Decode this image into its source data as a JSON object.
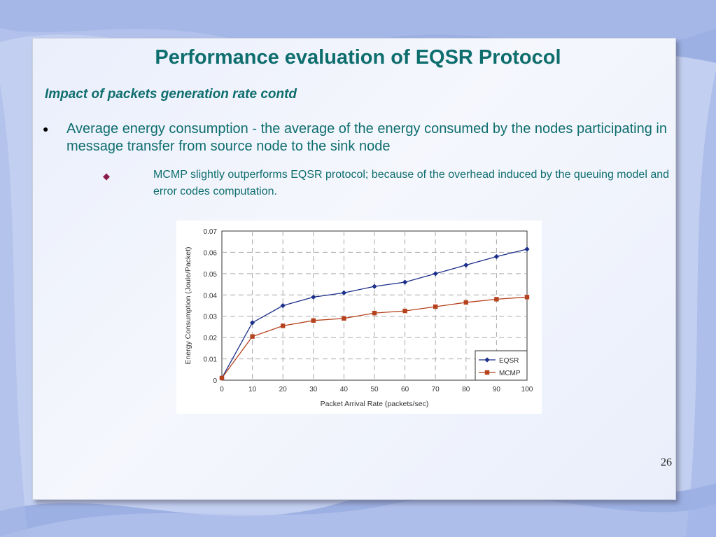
{
  "slide": {
    "title": "Performance evaluation of EQSR Protocol",
    "subtitle": "Impact of packets generation rate contd",
    "bullet1": "Average energy consumption - the average of the energy consumed by the nodes participating in message transfer from source node to the sink node",
    "bullet2": "MCMP slightly outperforms EQSR protocol; because of the overhead induced by the queuing model and error codes computation.",
    "page_number": "26"
  },
  "colors": {
    "title": "#0e6e6e",
    "eqsr": "#1c2f8a",
    "mcmp": "#b5421c",
    "bullet_diamond": "#8b1a4a"
  },
  "chart_data": {
    "type": "line",
    "title": "",
    "xlabel": "Packet Arrival Rate (packets/sec)",
    "ylabel": "Energy Consumption (Joule/Packet)",
    "x": [
      0,
      10,
      20,
      30,
      40,
      50,
      60,
      70,
      80,
      90,
      100
    ],
    "x_tick_labels": [
      "0",
      "10",
      "20",
      "30",
      "40",
      "50",
      "60",
      "70",
      "80",
      "90",
      "100"
    ],
    "y_tick_labels": [
      "0",
      "0.01",
      "0.02",
      "0.03",
      "0.04",
      "0.05",
      "0.06",
      "0.07"
    ],
    "y_ticks": [
      0,
      0.01,
      0.02,
      0.03,
      0.04,
      0.05,
      0.06,
      0.07
    ],
    "xlim": [
      0,
      100
    ],
    "ylim": [
      0,
      0.07
    ],
    "grid": true,
    "legend_position": "bottom-right",
    "series": [
      {
        "name": "EQSR",
        "marker": "diamond",
        "values": [
          0.001,
          0.027,
          0.035,
          0.039,
          0.041,
          0.044,
          0.046,
          0.05,
          0.054,
          0.058,
          0.0615
        ]
      },
      {
        "name": "MCMP",
        "marker": "square",
        "values": [
          0.001,
          0.0205,
          0.0255,
          0.028,
          0.029,
          0.0315,
          0.0325,
          0.0345,
          0.0365,
          0.038,
          0.039
        ]
      }
    ]
  }
}
